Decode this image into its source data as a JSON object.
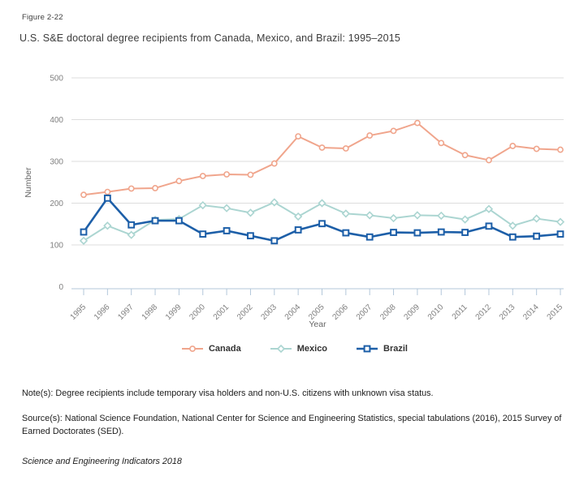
{
  "figure": {
    "label": "Figure 2-22",
    "title": "U.S. S&E doctoral degree recipients from Canada, Mexico, and Brazil: 1995–2015"
  },
  "chart_data": {
    "type": "line",
    "x": [
      1995,
      1996,
      1997,
      1998,
      1999,
      2000,
      2001,
      2002,
      2003,
      2004,
      2005,
      2006,
      2007,
      2008,
      2009,
      2010,
      2011,
      2012,
      2013,
      2014,
      2015
    ],
    "series": [
      {
        "name": "Canada",
        "color": "#f0a58c",
        "marker": "circle",
        "values": [
          220,
          227,
          235,
          236,
          253,
          265,
          269,
          268,
          295,
          360,
          333,
          331,
          362,
          373,
          392,
          344,
          315,
          303,
          337,
          330,
          328
        ]
      },
      {
        "name": "Mexico",
        "color": "#abd5d1",
        "marker": "diamond",
        "values": [
          110,
          146,
          124,
          160,
          162,
          195,
          188,
          177,
          202,
          168,
          200,
          175,
          171,
          164,
          171,
          170,
          161,
          186,
          146,
          163,
          155
        ]
      },
      {
        "name": "Brazil",
        "color": "#1d5fa8",
        "marker": "square",
        "values": [
          131,
          212,
          148,
          158,
          158,
          126,
          134,
          122,
          110,
          136,
          151,
          129,
          119,
          130,
          129,
          131,
          130,
          145,
          119,
          121,
          126
        ]
      }
    ],
    "xlabel": "Year",
    "ylabel": "Number",
    "ylim": [
      0,
      500
    ],
    "yticks": [
      0,
      100,
      200,
      300,
      400,
      500
    ],
    "grid": true,
    "legend_position": "bottom"
  },
  "footer": {
    "note": "Note(s): Degree recipients include temporary visa holders and non-U.S. citizens with unknown visa status.",
    "source": "Source(s): National Science Foundation, National Center for Science and Engineering Statistics, special tabulations (2016), 2015 Survey of Earned Doctorates (SED).",
    "attribution": "Science and Engineering Indicators 2018"
  },
  "colors": {
    "canada": "#f0a58c",
    "mexico": "#abd5d1",
    "brazil": "#1d5fa8",
    "gridline": "#dddddd",
    "axis": "#b3c7da",
    "tick_label": "#7f7f7f",
    "axis_title": "#666666",
    "title_text": "#3c3c3c"
  }
}
